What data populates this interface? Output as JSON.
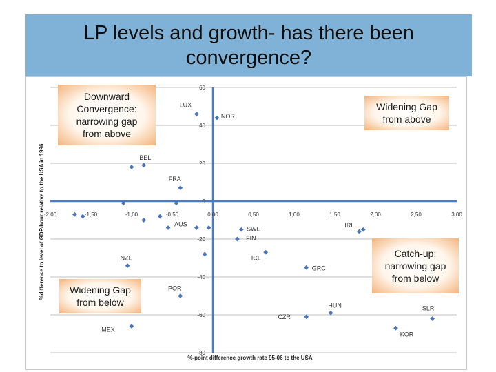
{
  "slide": {
    "title": "LP levels and growth- has there been convergence?"
  },
  "colors": {
    "title_bar": "#7fb2d6",
    "marker": "#4a76b8",
    "axis": "#4a7cc4",
    "box_gradient_outer": "#f4b57e",
    "box_gradient_inner": "#ffffff"
  },
  "chart_data": {
    "type": "scatter",
    "title": "",
    "xlabel": "%-point difference growth rate 95-06 to the USA",
    "ylabel": "%difference to level of GDP/hour relative to the USA in 1996",
    "xlim": [
      -2.0,
      3.0
    ],
    "ylim": [
      -80,
      60
    ],
    "x_ticks": [
      -2.0,
      -1.5,
      -1.0,
      -0.5,
      0.0,
      0.5,
      1.0,
      1.5,
      2.0,
      2.5,
      3.0
    ],
    "x_tick_labels": [
      "-2,00",
      "-1,50",
      "-1,00",
      "-0,50",
      "0,00",
      "0,50",
      "1,00",
      "1,50",
      "2,00",
      "2,50",
      "3,00"
    ],
    "y_ticks": [
      -80,
      -60,
      -40,
      -20,
      0,
      20,
      40,
      60
    ],
    "y_tick_labels": [
      "-80",
      "-60",
      "-40",
      "-20",
      "0",
      "20",
      "40",
      "60"
    ],
    "grid": "horizontal",
    "points": [
      {
        "label": "LUX",
        "x": -0.2,
        "y": 46
      },
      {
        "label": "NOR",
        "x": 0.05,
        "y": 44
      },
      {
        "label": "BEL",
        "x": -0.85,
        "y": 19
      },
      {
        "label": "",
        "x": -1.0,
        "y": 18
      },
      {
        "label": "FRA",
        "x": -0.4,
        "y": 7
      },
      {
        "label": "",
        "x": -1.1,
        "y": -1
      },
      {
        "label": "",
        "x": -0.45,
        "y": -1
      },
      {
        "label": "",
        "x": -1.7,
        "y": -7
      },
      {
        "label": "",
        "x": -1.6,
        "y": -8
      },
      {
        "label": "",
        "x": -0.65,
        "y": -8
      },
      {
        "label": "",
        "x": -0.85,
        "y": -10
      },
      {
        "label": "",
        "x": -0.55,
        "y": -14
      },
      {
        "label": "AUS",
        "x": -0.2,
        "y": -14
      },
      {
        "label": "",
        "x": -0.05,
        "y": -14
      },
      {
        "label": "SWE",
        "x": 0.35,
        "y": -15
      },
      {
        "label": "",
        "x": 1.85,
        "y": -15
      },
      {
        "label": "FIN",
        "x": 0.3,
        "y": -20
      },
      {
        "label": "IRL",
        "x": 1.8,
        "y": -16
      },
      {
        "label": "ICL",
        "x": 0.65,
        "y": -27
      },
      {
        "label": "",
        "x": -0.1,
        "y": -28
      },
      {
        "label": "NZL",
        "x": -1.05,
        "y": -34
      },
      {
        "label": "GRC",
        "x": 1.15,
        "y": -35
      },
      {
        "label": "POR",
        "x": -0.4,
        "y": -50
      },
      {
        "label": "HUN",
        "x": 1.45,
        "y": -59
      },
      {
        "label": "CZR",
        "x": 1.15,
        "y": -61
      },
      {
        "label": "SLR",
        "x": 2.7,
        "y": -62
      },
      {
        "label": "KOR",
        "x": 2.25,
        "y": -67
      },
      {
        "label": "MEX",
        "x": -1.0,
        "y": -66
      }
    ],
    "annotations": [
      {
        "lines": [
          "Downward",
          "Convergence:",
          "narrowing gap",
          "from above"
        ],
        "position": "top-left"
      },
      {
        "lines": [
          "Widening Gap",
          "from above"
        ],
        "position": "top-right"
      },
      {
        "lines": [
          "Catch-up:",
          "narrowing gap",
          "from below"
        ],
        "position": "bottom-right"
      },
      {
        "lines": [
          "Widening Gap",
          "from below"
        ],
        "position": "bottom-left"
      }
    ]
  }
}
